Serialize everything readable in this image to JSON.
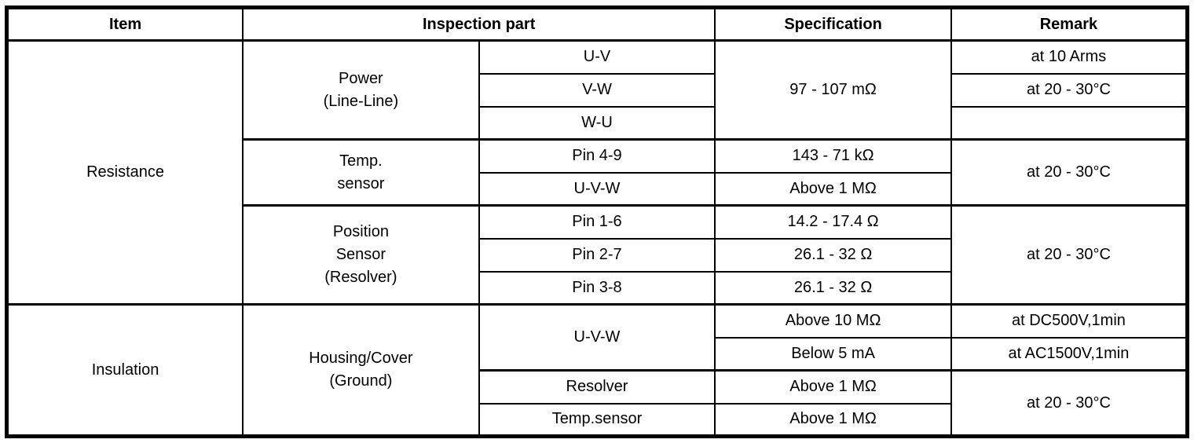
{
  "header": {
    "item": "Item",
    "inspection_part": "Inspection part",
    "specification": "Specification",
    "remark": "Remark"
  },
  "body": {
    "resistance": {
      "item": "Resistance",
      "power": {
        "part": "Power\n(Line-Line)",
        "spec": "97 - 107 mΩ",
        "rows": [
          {
            "sub": "U-V",
            "remark": "at 10 Arms"
          },
          {
            "sub": "V-W",
            "remark": "at 20 - 30°C"
          },
          {
            "sub": "W-U",
            "remark": ""
          }
        ]
      },
      "temp_sensor": {
        "part": "Temp.\nsensor",
        "remark": "at 20 - 30°C",
        "rows": [
          {
            "sub": "Pin 4-9",
            "spec": "143 - 71 kΩ"
          },
          {
            "sub": "U-V-W",
            "spec": "Above 1 MΩ"
          }
        ]
      },
      "position_sensor": {
        "part": "Position\nSensor\n(Resolver)",
        "remark": "at 20 - 30°C",
        "rows": [
          {
            "sub": "Pin 1-6",
            "spec": "14.2 - 17.4 Ω"
          },
          {
            "sub": "Pin 2-7",
            "spec": "26.1 - 32 Ω"
          },
          {
            "sub": "Pin 3-8",
            "spec": "26.1 - 32 Ω"
          }
        ]
      }
    },
    "insulation": {
      "item": "Insulation",
      "housing": {
        "part": "Housing/Cover\n(Ground)",
        "uvw": {
          "sub": "U-V-W",
          "rows": [
            {
              "spec": "Above 10 MΩ",
              "remark": "at DC500V,1min"
            },
            {
              "spec": "Below 5 mA",
              "remark": "at AC1500V,1min"
            }
          ]
        },
        "others": {
          "remark": "at 20 - 30°C",
          "rows": [
            {
              "sub": "Resolver",
              "spec": "Above 1 MΩ"
            },
            {
              "sub": "Temp.sensor",
              "spec": "Above 1 MΩ"
            }
          ]
        }
      }
    }
  }
}
